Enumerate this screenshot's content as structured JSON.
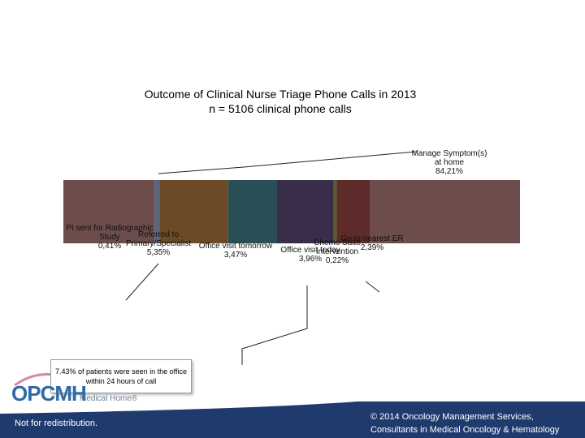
{
  "header": {
    "title": "Outcome of Clinical Nurse Triage Phone Calls in 2013",
    "subtitle": "n = 5106 clinical phone calls"
  },
  "chart_data": {
    "type": "pie3d-edge",
    "categories": [
      "Pt sent for Radiographic Study",
      "Referred to Primary/Specialist",
      "Office visit tomorrow",
      "Office visit today",
      "Chemo Suite Intervention",
      "Go to nearest ER",
      "Manage Symptom(s) at home"
    ],
    "values": [
      0.41,
      5.35,
      3.47,
      3.96,
      0.22,
      2.39,
      84.21
    ],
    "value_labels": [
      "0,41%",
      "5,35%",
      "3,47%",
      "3,96%",
      "0,22%",
      "2,39%",
      "84,21%"
    ],
    "colors": [
      "#56667f",
      "#6c4a26",
      "#2a4f57",
      "#3a2d4a",
      "#5b5b2c",
      "#5d2b29",
      "#6d4c4c"
    ]
  },
  "callout": "7.43% of patients were seen in the office within 24 hours of call",
  "logo": {
    "name": "OPCMH",
    "tagline": "Medical Home®"
  },
  "footer": {
    "left": "Not for redistribution.",
    "right_line1": "© 2014 Oncology Management Services,",
    "right_line2": "Consultants in Medical Oncology & Hematology"
  }
}
